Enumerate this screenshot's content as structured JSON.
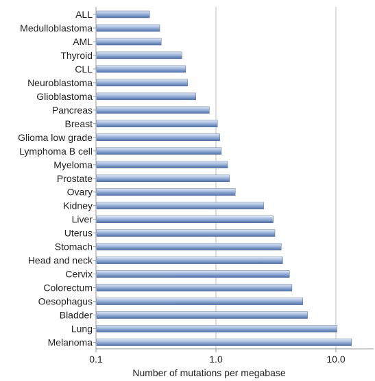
{
  "chart_data": {
    "type": "bar",
    "orientation": "horizontal",
    "scale": "log",
    "xlabel": "Number of mutations per megabase",
    "xlim": [
      0.1,
      20
    ],
    "xticks": [
      "0.1",
      "1.0",
      "10.0"
    ],
    "grid": "vertical lines at ticks",
    "bar_color": "#7f9bc9",
    "categories": [
      "ALL",
      "Medulloblastoma",
      "AML",
      "Thyroid",
      "CLL",
      "Neuroblastoma",
      "Glioblastoma",
      "Pancreas",
      "Breast",
      "Glioma low grade",
      "Lymphoma B cell",
      "Myeloma",
      "Prostate",
      "Ovary",
      "Kidney",
      "Liver",
      "Uterus",
      "Stomach",
      "Head and neck",
      "Cervix",
      "Colorectum",
      "Oesophagus",
      "Bladder",
      "Lung",
      "Melanoma"
    ],
    "values": [
      0.28,
      0.34,
      0.35,
      0.52,
      0.56,
      0.58,
      0.68,
      0.88,
      1.03,
      1.08,
      1.11,
      1.25,
      1.3,
      1.45,
      2.5,
      3.0,
      3.1,
      3.5,
      3.6,
      4.1,
      4.3,
      5.3,
      5.8,
      10.2,
      13.5
    ]
  }
}
